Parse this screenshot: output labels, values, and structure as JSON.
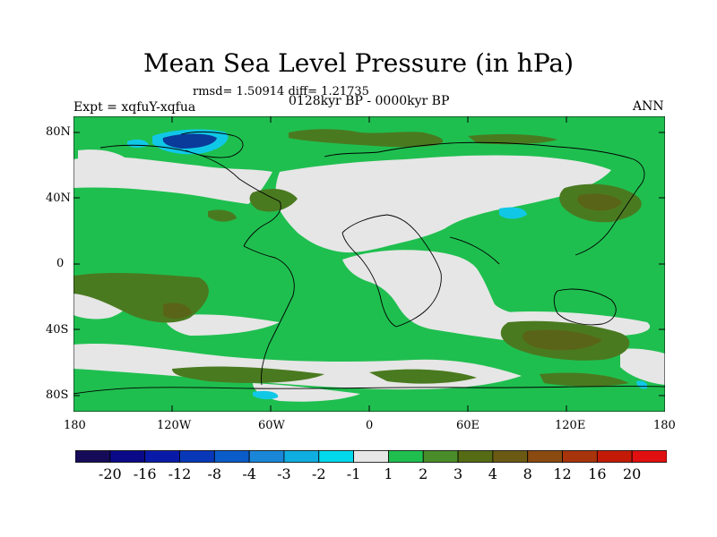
{
  "title": "Mean Sea Level Pressure (in hPa)",
  "stats": "rmsd= 1.50914 diff= 1.21735",
  "period": "0128kyr BP - 0000kyr BP",
  "experiment": "Expt = xqfuY-xqfua",
  "season": "ANN",
  "y_ticks": [
    "80N",
    "40N",
    "0",
    "40S",
    "80S"
  ],
  "x_ticks": [
    "180",
    "120W",
    "60W",
    "0",
    "60E",
    "120E",
    "180"
  ],
  "colorbar": {
    "colors": [
      "#160b58",
      "#0a0a88",
      "#0a1aa8",
      "#0838b8",
      "#0a5cc8",
      "#1a86d8",
      "#10aee0",
      "#00d8ec",
      "#e6e6e6",
      "#1fbf4f",
      "#4a8c2a",
      "#556b14",
      "#6b5a14",
      "#8a4a10",
      "#a8340c",
      "#c41a08",
      "#e01010"
    ],
    "labels": [
      "-20",
      "-16",
      "-12",
      "-8",
      "-4",
      "-3",
      "-2",
      "-1",
      "1",
      "2",
      "3",
      "4",
      "8",
      "12",
      "16",
      "20"
    ]
  },
  "palette": {
    "ocean_bg": "#1fbf4f",
    "neutral": "#e6e6e6",
    "positive_dark": "#4a7a20",
    "positive_darker": "#5a6418",
    "negative_light": "#10c8e6",
    "negative_dark": "#0a3a9a"
  }
}
